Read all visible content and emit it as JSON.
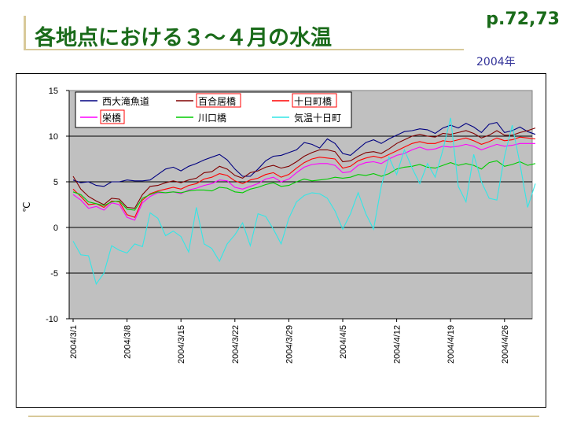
{
  "header": {
    "title": "各地点における３～４月の水温",
    "page_ref": "p.72,73",
    "year": "2004年"
  },
  "chart_data": {
    "type": "line",
    "title": "",
    "xlabel": "",
    "ylabel": "℃",
    "ylim": [
      -10,
      15
    ],
    "yticks": [
      "15",
      "10",
      "5",
      "0",
      "-5",
      "-10"
    ],
    "ytick_values": [
      15,
      10,
      5,
      0,
      -5,
      -10
    ],
    "xtick_labels": [
      "2004/3/1",
      "2004/3/8",
      "2004/3/15",
      "2004/3/22",
      "2004/3/29",
      "2004/4/5",
      "2004/4/12",
      "2004/4/19",
      "2004/4/26"
    ],
    "xtick_index": [
      0,
      7,
      14,
      21,
      28,
      35,
      42,
      49,
      56
    ],
    "x_count": 61,
    "grid": true,
    "legend_position": "top",
    "series": [
      {
        "name": "西大滝魚道",
        "color": "#000080",
        "boxed": false,
        "values": [
          5.2,
          4.9,
          5.0,
          4.6,
          4.5,
          5.0,
          5.0,
          5.2,
          5.1,
          5.1,
          5.2,
          5.8,
          6.4,
          6.6,
          6.2,
          6.7,
          7.0,
          7.4,
          7.7,
          8.0,
          7.4,
          6.4,
          5.6,
          5.6,
          6.4,
          7.3,
          7.8,
          7.9,
          8.2,
          8.5,
          9.3,
          9.1,
          8.7,
          9.7,
          9.2,
          8.1,
          7.9,
          8.6,
          9.3,
          9.6,
          9.2,
          9.7,
          10.1,
          10.5,
          10.6,
          10.8,
          10.7,
          10.3,
          10.9,
          11.2,
          10.9,
          11.4,
          11.0,
          10.4,
          11.3,
          11.5,
          10.4,
          10.6,
          11.0,
          10.5,
          10.2
        ]
      },
      {
        "name": "百合居橋",
        "color": "#800000",
        "boxed": true,
        "values": [
          5.6,
          4.2,
          3.4,
          2.9,
          2.5,
          3.2,
          3.1,
          2.2,
          2.1,
          3.6,
          4.5,
          4.6,
          4.9,
          5.1,
          4.9,
          5.2,
          5.4,
          6.0,
          6.1,
          6.7,
          6.4,
          5.7,
          5.4,
          6.0,
          6.2,
          6.6,
          6.8,
          6.5,
          6.7,
          7.2,
          7.8,
          8.2,
          8.5,
          8.5,
          8.3,
          7.2,
          7.3,
          7.8,
          8.2,
          8.3,
          8.1,
          8.6,
          9.2,
          9.6,
          10.0,
          10.2,
          10.0,
          9.9,
          10.3,
          10.2,
          10.4,
          10.6,
          10.3,
          9.8,
          10.1,
          10.6,
          10.1,
          10.1,
          10.4,
          10.6,
          10.9
        ]
      },
      {
        "name": "十日町橋",
        "color": "#ff0000",
        "boxed": true,
        "values": [
          4.2,
          3.4,
          2.5,
          2.6,
          2.2,
          2.9,
          2.8,
          1.4,
          1.1,
          3.0,
          3.7,
          4.0,
          4.2,
          4.4,
          4.2,
          4.6,
          4.8,
          5.3,
          5.5,
          5.9,
          5.7,
          5.1,
          4.8,
          5.2,
          5.4,
          5.8,
          6.0,
          5.5,
          5.8,
          6.5,
          7.1,
          7.5,
          7.7,
          7.6,
          7.5,
          6.5,
          6.7,
          7.3,
          7.6,
          7.8,
          7.6,
          8.0,
          8.4,
          8.8,
          9.2,
          9.4,
          9.2,
          9.2,
          9.5,
          9.4,
          9.6,
          9.8,
          9.5,
          9.1,
          9.4,
          9.8,
          9.5,
          9.6,
          9.9,
          9.8,
          9.7
        ]
      },
      {
        "name": "栄橋",
        "color": "#ff00ff",
        "boxed": true,
        "values": [
          3.6,
          3.0,
          2.1,
          2.3,
          1.9,
          2.7,
          2.5,
          1.1,
          0.8,
          2.7,
          3.4,
          3.8,
          3.8,
          3.9,
          3.7,
          4.1,
          4.3,
          4.6,
          4.8,
          5.2,
          5.1,
          4.4,
          4.2,
          4.5,
          4.8,
          5.3,
          5.5,
          5.0,
          5.3,
          6.0,
          6.6,
          6.9,
          7.0,
          7.0,
          6.8,
          6.0,
          6.1,
          6.8,
          7.1,
          7.2,
          7.0,
          7.5,
          7.9,
          8.1,
          8.5,
          8.8,
          8.5,
          8.6,
          8.9,
          8.8,
          8.9,
          9.1,
          8.9,
          8.5,
          8.8,
          9.1,
          8.9,
          9.0,
          9.2,
          9.2,
          9.2
        ]
      },
      {
        "name": "川口橋",
        "color": "#00cc00",
        "boxed": false,
        "values": [
          3.9,
          3.6,
          2.8,
          2.6,
          2.4,
          2.8,
          2.9,
          2.0,
          1.9,
          3.2,
          3.6,
          3.9,
          3.8,
          3.9,
          3.8,
          4.0,
          4.1,
          4.1,
          4.0,
          4.4,
          4.3,
          3.9,
          3.8,
          4.2,
          4.4,
          4.7,
          4.9,
          4.5,
          4.6,
          5.0,
          5.3,
          5.1,
          5.2,
          5.3,
          5.5,
          5.4,
          5.5,
          5.8,
          5.7,
          5.9,
          5.6,
          5.9,
          6.4,
          6.6,
          6.7,
          6.9,
          6.6,
          6.5,
          6.8,
          7.1,
          6.8,
          7.0,
          6.8,
          6.4,
          7.1,
          7.3,
          6.7,
          6.9,
          7.2,
          6.8,
          7.0
        ]
      },
      {
        "name": "気温十日町",
        "color": "#33e6e6",
        "boxed": false,
        "values": [
          -1.5,
          -3.0,
          -3.1,
          -6.2,
          -5.0,
          -2.0,
          -2.5,
          -2.8,
          -1.8,
          -2.1,
          1.6,
          1.0,
          -0.9,
          -0.4,
          -1.0,
          -2.7,
          2.2,
          -1.8,
          -2.3,
          -3.7,
          -1.8,
          -0.8,
          0.5,
          -2.0,
          1.5,
          1.2,
          -0.2,
          -1.8,
          1.0,
          2.8,
          3.5,
          3.8,
          3.7,
          3.2,
          1.8,
          -0.2,
          1.5,
          3.8,
          1.5,
          -0.2,
          4.5,
          7.7,
          5.8,
          8.5,
          6.5,
          4.8,
          7.0,
          5.5,
          8.5,
          12.0,
          4.5,
          2.8,
          8.0,
          5.0,
          3.2,
          3.0,
          7.8,
          11.2,
          7.0,
          2.2,
          4.8
        ]
      }
    ]
  }
}
